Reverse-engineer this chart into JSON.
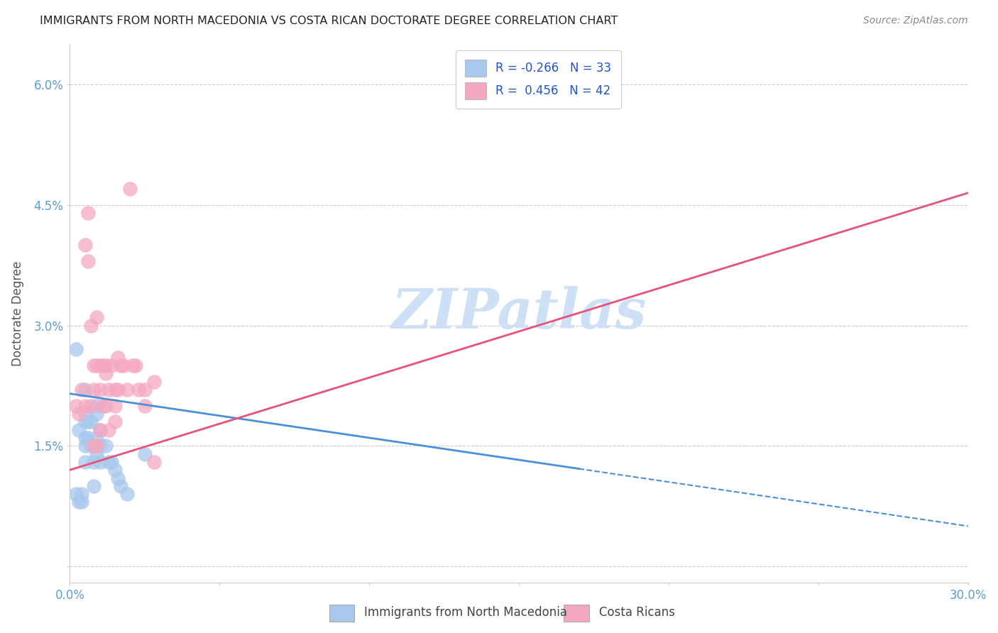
{
  "title": "IMMIGRANTS FROM NORTH MACEDONIA VS COSTA RICAN DOCTORATE DEGREE CORRELATION CHART",
  "source": "Source: ZipAtlas.com",
  "xlabel_blue": "Immigrants from North Macedonia",
  "xlabel_pink": "Costa Ricans",
  "ylabel": "Doctorate Degree",
  "xlim": [
    0.0,
    0.3
  ],
  "ylim": [
    -0.002,
    0.065
  ],
  "xticks": [
    0.0,
    0.05,
    0.1,
    0.15,
    0.2,
    0.25,
    0.3
  ],
  "xtick_labels": [
    "0.0%",
    "",
    "",
    "",
    "",
    "",
    "30.0%"
  ],
  "yticks": [
    0.0,
    0.015,
    0.03,
    0.045,
    0.06
  ],
  "ytick_labels": [
    "",
    "1.5%",
    "3.0%",
    "4.5%",
    "6.0%"
  ],
  "blue_R": -0.266,
  "blue_N": 33,
  "pink_R": 0.456,
  "pink_N": 42,
  "blue_color": "#a8c8ed",
  "pink_color": "#f4a8c0",
  "blue_line_color": "#4a90d9",
  "pink_line_color": "#e8527a",
  "watermark": "ZIPatlas",
  "watermark_color": "#cde0f5",
  "background_color": "#ffffff",
  "grid_color": "#cccccc",
  "axis_label_color": "#5b9bd5",
  "blue_line_intercept": 0.0215,
  "blue_line_slope": -0.055,
  "pink_line_intercept": 0.012,
  "pink_line_slope": 0.115,
  "blue_scatter_x": [
    0.002,
    0.002,
    0.003,
    0.003,
    0.004,
    0.004,
    0.005,
    0.005,
    0.005,
    0.005,
    0.005,
    0.005,
    0.006,
    0.006,
    0.007,
    0.007,
    0.008,
    0.008,
    0.009,
    0.009,
    0.009,
    0.009,
    0.01,
    0.01,
    0.01,
    0.012,
    0.013,
    0.014,
    0.015,
    0.016,
    0.017,
    0.019,
    0.025
  ],
  "blue_scatter_y": [
    0.027,
    0.009,
    0.017,
    0.008,
    0.009,
    0.008,
    0.022,
    0.019,
    0.018,
    0.016,
    0.015,
    0.013,
    0.018,
    0.016,
    0.018,
    0.015,
    0.013,
    0.01,
    0.02,
    0.019,
    0.016,
    0.014,
    0.017,
    0.015,
    0.013,
    0.015,
    0.013,
    0.013,
    0.012,
    0.011,
    0.01,
    0.009,
    0.014
  ],
  "pink_scatter_x": [
    0.002,
    0.003,
    0.004,
    0.005,
    0.005,
    0.006,
    0.006,
    0.007,
    0.007,
    0.008,
    0.008,
    0.008,
    0.009,
    0.009,
    0.009,
    0.01,
    0.01,
    0.01,
    0.011,
    0.011,
    0.012,
    0.012,
    0.012,
    0.013,
    0.013,
    0.014,
    0.015,
    0.015,
    0.015,
    0.016,
    0.016,
    0.017,
    0.018,
    0.019,
    0.02,
    0.021,
    0.022,
    0.023,
    0.025,
    0.025,
    0.028,
    0.028
  ],
  "pink_scatter_y": [
    0.02,
    0.019,
    0.022,
    0.04,
    0.02,
    0.044,
    0.038,
    0.03,
    0.02,
    0.025,
    0.022,
    0.015,
    0.031,
    0.025,
    0.015,
    0.025,
    0.022,
    0.017,
    0.025,
    0.02,
    0.025,
    0.024,
    0.02,
    0.022,
    0.017,
    0.025,
    0.022,
    0.02,
    0.018,
    0.026,
    0.022,
    0.025,
    0.025,
    0.022,
    0.047,
    0.025,
    0.025,
    0.022,
    0.022,
    0.02,
    0.023,
    0.013
  ]
}
